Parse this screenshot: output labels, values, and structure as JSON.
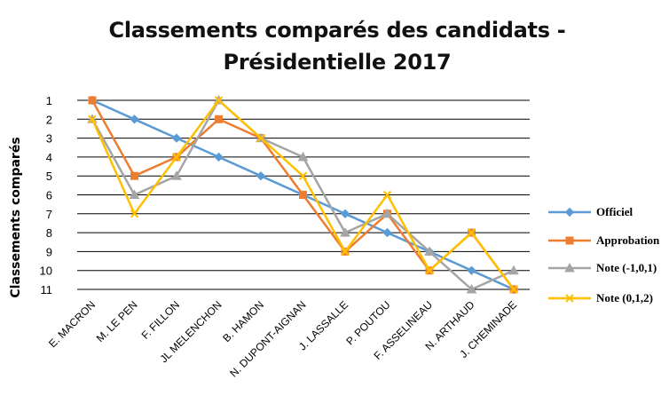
{
  "chart_data": {
    "type": "line",
    "title": "Classements comparés des candidats -\nPrésidentielle 2017",
    "ylabel": "Classements comparés",
    "xlabel": "",
    "y_reversed": true,
    "ylim": [
      1,
      11
    ],
    "yticks": [
      "1",
      "2",
      "3",
      "4",
      "5",
      "6",
      "7",
      "8",
      "9",
      "10",
      "11"
    ],
    "grid": "horizontal",
    "legend": "right",
    "categories": [
      "E. MACRON",
      "M. LE PEN",
      "F. FILLON",
      "JL MELENCHON",
      "B. HAMON",
      "N. DUPONT-AIGNAN",
      "J. LASSALLE",
      "P. POUTOU",
      "F. ASSELINEAU",
      "N. ARTHAUD",
      "J. CHEMINADE"
    ],
    "series": [
      {
        "name": "Officiel",
        "color": "#5b9bd5",
        "marker": "diamond",
        "values": [
          1,
          2,
          3,
          4,
          5,
          6,
          7,
          8,
          9,
          10,
          11
        ]
      },
      {
        "name": "Approbation",
        "color": "#ed7d31",
        "marker": "square",
        "values": [
          1,
          5,
          4,
          2,
          3,
          6,
          9,
          7,
          10,
          8,
          11
        ]
      },
      {
        "name": "Note (-1,0,1)",
        "color": "#a5a5a5",
        "marker": "triangle",
        "values": [
          2,
          6,
          5,
          1,
          3,
          4,
          8,
          7,
          9,
          11,
          10
        ]
      },
      {
        "name": "Note (0,1,2)",
        "color": "#ffc000",
        "marker": "x",
        "values": [
          2,
          7,
          4,
          1,
          3,
          5,
          9,
          6,
          10,
          8,
          11
        ]
      }
    ]
  }
}
